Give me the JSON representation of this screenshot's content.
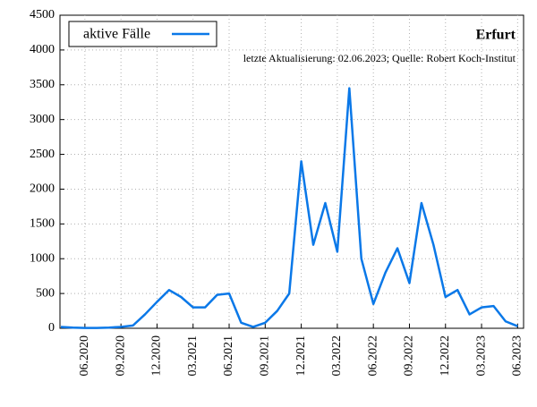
{
  "chart_data": {
    "type": "line",
    "title": "Erfurt",
    "subtitle": "letzte Aktualisierung: 02.06.2023; Quelle: Robert Koch-Institut",
    "x": [
      "04.2020",
      "05.2020",
      "06.2020",
      "07.2020",
      "08.2020",
      "09.2020",
      "10.2020",
      "11.2020",
      "12.2020",
      "01.2021",
      "02.2021",
      "03.2021",
      "04.2021",
      "05.2021",
      "06.2021",
      "07.2021",
      "08.2021",
      "09.2021",
      "10.2021",
      "11.2021",
      "12.2021",
      "01.2022",
      "02.2022",
      "03.2022",
      "04.2022",
      "05.2022",
      "06.2022",
      "07.2022",
      "08.2022",
      "09.2022",
      "10.2022",
      "11.2022",
      "12.2022",
      "01.2023",
      "02.2023",
      "03.2023",
      "04.2023",
      "05.2023",
      "06.2023"
    ],
    "series": [
      {
        "name": "aktive Fälle",
        "color": "#0a78e8",
        "values": [
          20,
          10,
          5,
          5,
          10,
          20,
          40,
          200,
          380,
          550,
          450,
          300,
          300,
          480,
          500,
          80,
          20,
          80,
          250,
          500,
          2400,
          1200,
          1800,
          1100,
          3450,
          1000,
          350,
          800,
          1150,
          650,
          1800,
          1200,
          450,
          550,
          200,
          300,
          320,
          100,
          30
        ]
      }
    ],
    "xticks": [
      "06.2020",
      "09.2020",
      "12.2020",
      "03.2021",
      "06.2021",
      "09.2021",
      "12.2021",
      "03.2022",
      "06.2022",
      "09.2022",
      "12.2022",
      "03.2023",
      "06.2023"
    ],
    "ylim": [
      0,
      4500
    ],
    "yticks": [
      0,
      500,
      1000,
      1500,
      2000,
      2500,
      3000,
      3500,
      4000,
      4500
    ],
    "grid": true,
    "legend": "upper left"
  }
}
